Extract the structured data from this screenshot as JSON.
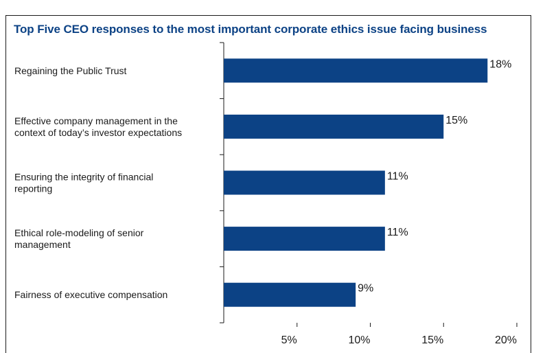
{
  "chart_data": {
    "type": "bar",
    "orientation": "horizontal",
    "title": "Top Five CEO responses to the most important corporate ethics issue facing business",
    "categories": [
      [
        "Regaining the Public Trust"
      ],
      [
        "Effective company management in the",
        "context of today’s investor expectations"
      ],
      [
        "Ensuring the integrity of financial",
        "reporting"
      ],
      [
        "Ethical role-modeling of senior",
        "management"
      ],
      [
        "Fairness of executive compensation"
      ]
    ],
    "values": [
      18,
      15,
      11,
      11,
      9
    ],
    "value_labels": [
      "18%",
      "15%",
      "11%",
      "11%",
      "9%"
    ],
    "xlim": [
      0,
      20
    ],
    "x_ticks": [
      5,
      10,
      15,
      20
    ],
    "x_tick_labels": [
      "5%",
      "10%",
      "15%",
      "20%"
    ],
    "bar_color": "#0c4285",
    "grid": false
  }
}
